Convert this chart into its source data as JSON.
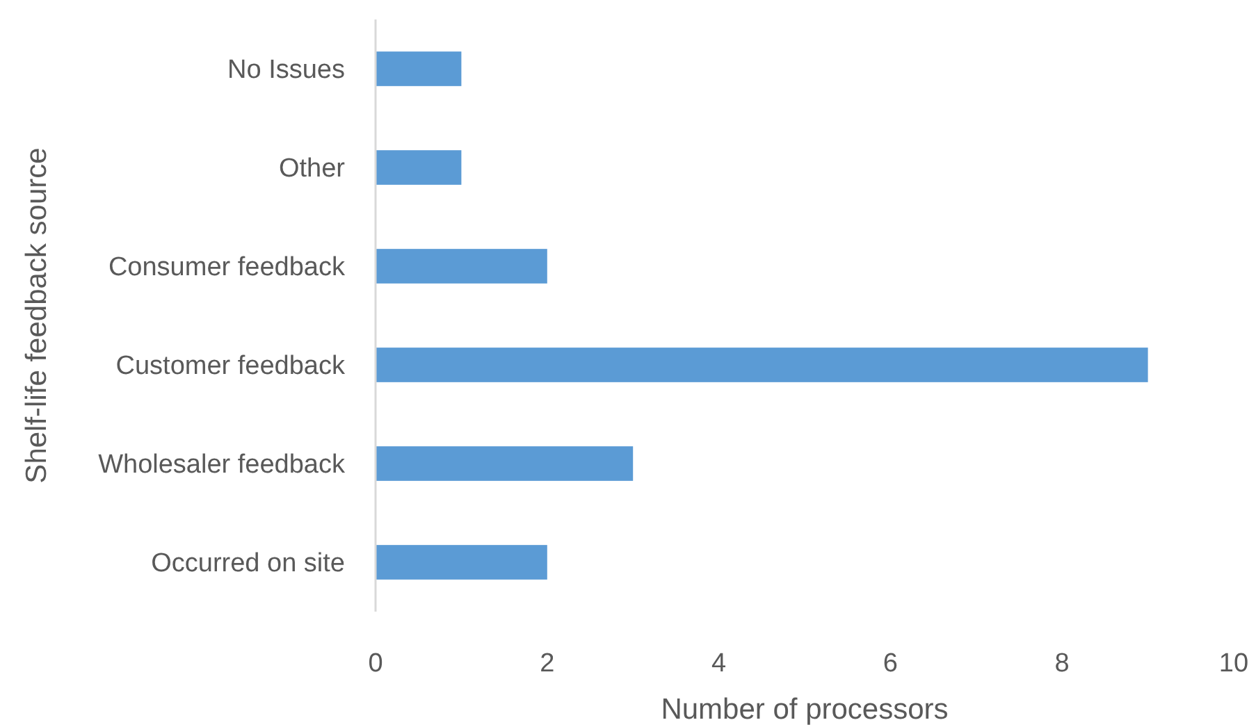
{
  "chart_data": {
    "type": "bar",
    "orientation": "horizontal",
    "xlabel": "Number of processors",
    "ylabel": "Shelf-life feedback source",
    "categories": [
      "No Issues",
      "Other",
      "Consumer feedback",
      "Customer feedback",
      "Wholesaler feedback",
      "Occurred on site"
    ],
    "values": [
      1,
      1,
      2,
      9,
      3,
      2
    ],
    "color": "#5b9bd5",
    "xlim": [
      0,
      10
    ],
    "xticks": [
      0,
      2,
      4,
      6,
      8,
      10
    ],
    "grid": false
  }
}
